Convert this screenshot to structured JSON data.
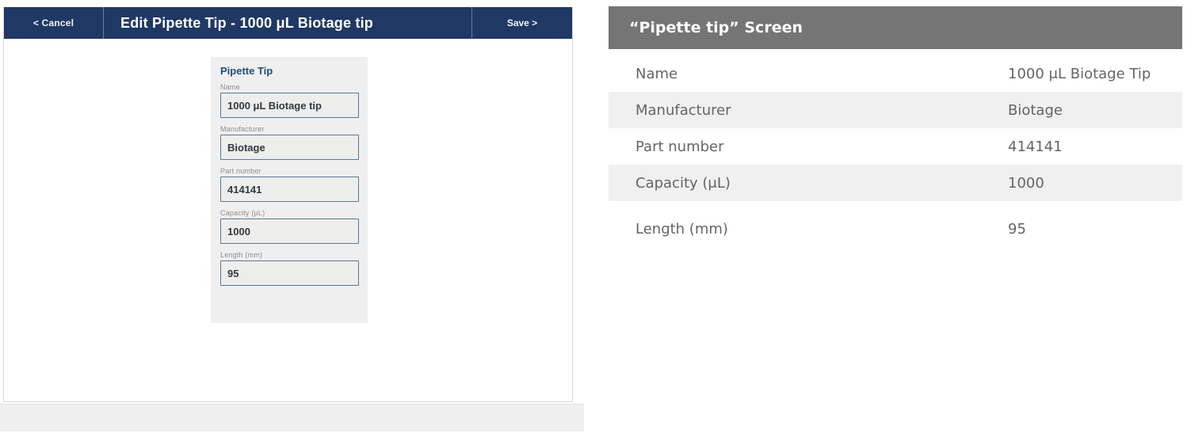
{
  "left_app": {
    "header": {
      "cancel_label": "< Cancel",
      "title": "Edit Pipette Tip - 1000 μL Biotage tip",
      "save_label": "Save >"
    },
    "form": {
      "title": "Pipette Tip",
      "fields": [
        {
          "label": "Name",
          "value": "1000 μL Biotage tip"
        },
        {
          "label": "Manufacturer",
          "value": "Biotage"
        },
        {
          "label": "Part number",
          "value": "414141"
        },
        {
          "label": "Capacity (μL)",
          "value": "1000"
        },
        {
          "label": "Length (mm)",
          "value": "95"
        }
      ]
    }
  },
  "right_panel": {
    "title": "“Pipette tip” Screen",
    "rows": [
      {
        "label": "Name",
        "value": "1000 μL Biotage Tip"
      },
      {
        "label": "Manufacturer",
        "value": "Biotage"
      },
      {
        "label": "Part number",
        "value": "414141"
      },
      {
        "label": "Capacity (μL)",
        "value": "1000"
      },
      {
        "label": "Length (mm)",
        "value": "95"
      }
    ]
  },
  "colors": {
    "navy_header": "#1f3864",
    "gray_header": "#757575",
    "row_stripe": "#f0f0f0",
    "form_panel_bg": "#f0efef",
    "input_border": "#5a7894",
    "form_title_blue": "#1f4e79"
  }
}
